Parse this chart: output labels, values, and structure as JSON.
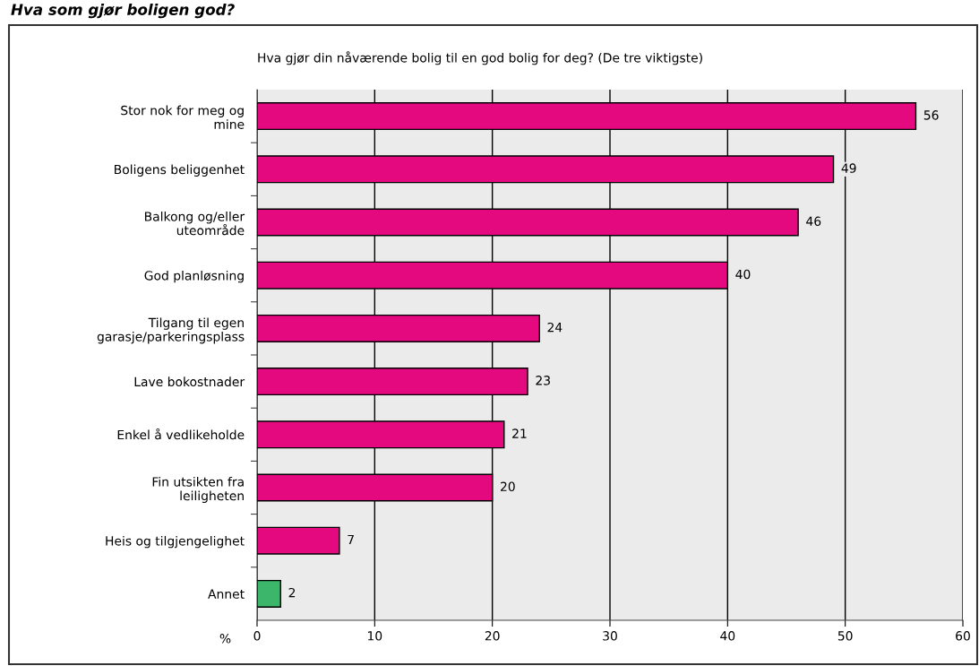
{
  "chart_data": {
    "type": "bar",
    "orientation": "horizontal",
    "title": "Hva som gjør boligen god?",
    "subtitle": "Hva gjør din nåværende bolig til en god bolig for deg? (De tre viktigste)",
    "xlabel": "%",
    "categories": [
      "Stor nok for meg og\nmine",
      "Boligens beliggenhet",
      "Balkong og/eller\nuteområde",
      "God planløsning",
      "Tilgang til egen\ngarasje/parkeringsplass",
      "Lave bokostnader",
      "Enkel å vedlikeholde",
      "Fin utsikten fra\nleiligheten",
      "Heis og tilgjengelighet",
      "Annet"
    ],
    "values": [
      56,
      49,
      46,
      40,
      24,
      23,
      21,
      20,
      7,
      2
    ],
    "colors": [
      "#e4097f",
      "#e4097f",
      "#e4097f",
      "#e4097f",
      "#e4097f",
      "#e4097f",
      "#e4097f",
      "#e4097f",
      "#e4097f",
      "#3cb66a"
    ],
    "xlim": [
      0,
      60
    ],
    "xticks": [
      0,
      10,
      20,
      30,
      40,
      50,
      60
    ],
    "grid": "x",
    "data_labels": true
  }
}
